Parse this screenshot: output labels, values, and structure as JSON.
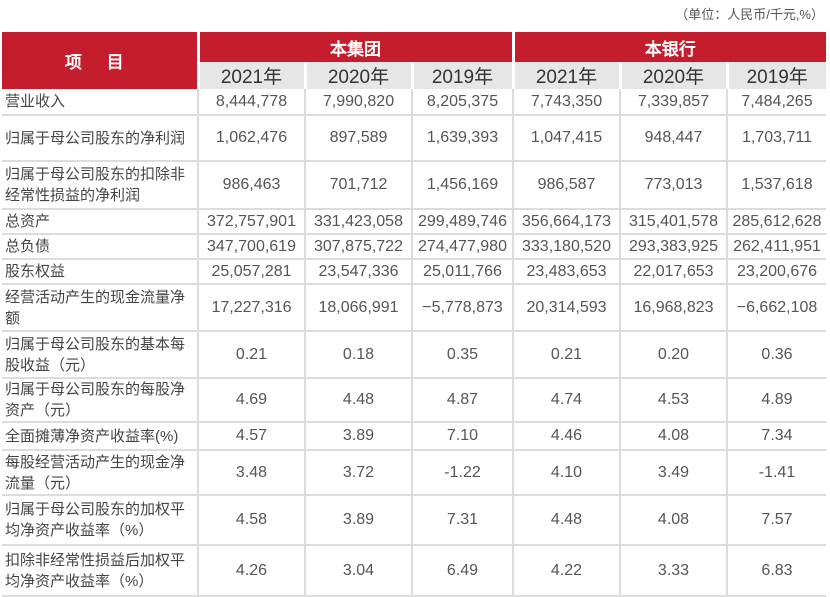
{
  "unit_note": "（单位：人民币/千元,%）",
  "header": {
    "item": "项 目",
    "group": "本集团",
    "bank": "本银行",
    "years": [
      "2021年",
      "2020年",
      "2019年",
      "2021年",
      "2020年",
      "2019年"
    ]
  },
  "rows": [
    {
      "label": "营业收入",
      "values": [
        "8,444,778",
        "7,990,820",
        "8,205,375",
        "7,743,350",
        "7,339,857",
        "7,484,265"
      ]
    },
    {
      "label": "归属于母公司股东的净利润",
      "values": [
        "1,062,476",
        "897,589",
        "1,639,393",
        "1,047,415",
        "948,447",
        "1,703,711"
      ]
    },
    {
      "label": "归属于母公司股东的扣除非经常性损益的净利润",
      "values": [
        "986,463",
        "701,712",
        "1,456,169",
        "986,587",
        "773,013",
        "1,537,618"
      ]
    },
    {
      "label": "总资产",
      "values": [
        "372,757,901",
        "331,423,058",
        "299,489,746",
        "356,664,173",
        "315,401,578",
        "285,612,628"
      ]
    },
    {
      "label": "总负债",
      "values": [
        "347,700,619",
        "307,875,722",
        "274,477,980",
        "333,180,520",
        "293,383,925",
        "262,411,951"
      ]
    },
    {
      "label": "股东权益",
      "values": [
        "25,057,281",
        "23,547,336",
        "25,011,766",
        "23,483,653",
        "22,017,653",
        "23,200,676"
      ]
    },
    {
      "label": "经营活动产生的现金流量净额",
      "values": [
        "17,227,316",
        "18,066,991",
        "−5,778,873",
        "20,314,593",
        "16,968,823",
        "−6,662,108"
      ]
    },
    {
      "label": "归属于母公司股东的基本每股收益（元）",
      "values": [
        "0.21",
        "0.18",
        "0.35",
        "0.21",
        "0.20",
        "0.36"
      ]
    },
    {
      "label": "归属于母公司股东的每股净资产（元）",
      "values": [
        "4.69",
        "4.48",
        "4.87",
        "4.74",
        "4.53",
        "4.89"
      ]
    },
    {
      "label": "全面摊薄净资产收益率(%)",
      "values": [
        "4.57",
        "3.89",
        "7.10",
        "4.46",
        "4.08",
        "7.34"
      ]
    },
    {
      "label": "每股经营活动产生的现金净流量（元）",
      "values": [
        "3.48",
        "3.72",
        "-1.22",
        "4.10",
        "3.49",
        "-1.41"
      ]
    },
    {
      "label": "归属于母公司股东的加权平均净资产收益率（%）",
      "values": [
        "4.58",
        "3.89",
        "7.31",
        "4.48",
        "4.08",
        "7.57"
      ]
    },
    {
      "label": "扣除非经常性损益后加权平均净资产收益率（%）",
      "values": [
        "4.26",
        "3.04",
        "6.49",
        "4.22",
        "3.33",
        "6.83"
      ]
    }
  ]
}
